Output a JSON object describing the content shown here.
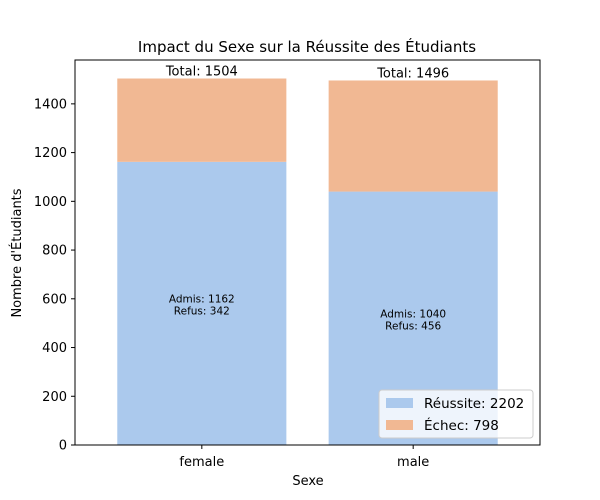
{
  "chart_data": {
    "type": "bar",
    "stacked": true,
    "title": "Impact du Sexe sur la Réussite des Étudiants",
    "xlabel": "Sexe",
    "ylabel": "Nombre d'Étudiants",
    "categories": [
      "female",
      "male"
    ],
    "ylim": [
      0,
      1580
    ],
    "yticks": [
      0,
      200,
      400,
      600,
      800,
      1000,
      1200,
      1400
    ],
    "series": [
      {
        "name": "Réussite: 2202",
        "values": [
          1162,
          1040
        ],
        "color": "#abc9ed"
      },
      {
        "name": "Échec: 798",
        "values": [
          342,
          456
        ],
        "color": "#f1b893"
      }
    ],
    "totals": [
      "Total: 1504",
      "Total: 1496"
    ],
    "bar_annotations": [
      [
        "Admis: 1162",
        "Refus: 342"
      ],
      [
        "Admis: 1040",
        "Refus: 456"
      ]
    ],
    "grid": false,
    "legend_position": "lower-right"
  }
}
